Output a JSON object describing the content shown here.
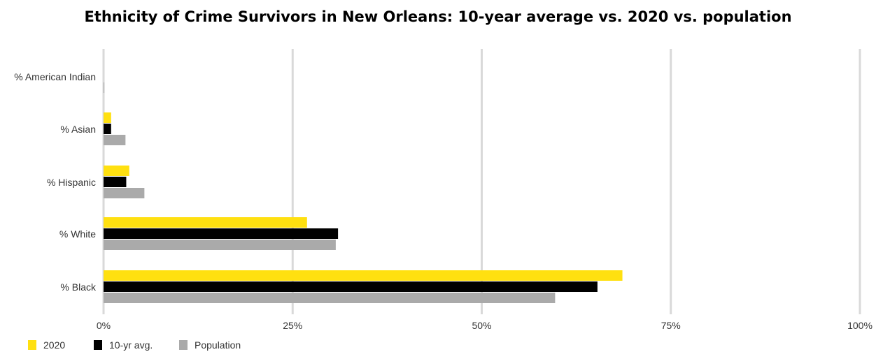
{
  "chart_data": {
    "type": "bar",
    "orientation": "horizontal",
    "title": "Ethnicity of Crime Survivors in New Orleans: 10-year average vs. 2020 vs. population",
    "categories": [
      "% American Indian",
      "% Asian",
      "% Hispanic",
      "% White",
      "% Black"
    ],
    "series": [
      {
        "name": "2020",
        "color": "#FFE010",
        "values": [
          0.0,
          1.0,
          3.4,
          26.9,
          68.6
        ]
      },
      {
        "name": "10-yr avg.",
        "color": "#000000",
        "values": [
          0.0,
          1.0,
          3.0,
          31.0,
          65.3
        ]
      },
      {
        "name": "Population",
        "color": "#AAAAAA",
        "values": [
          0.1,
          2.9,
          5.4,
          30.7,
          59.7
        ]
      }
    ],
    "xlim": [
      0,
      100
    ],
    "xticks": [
      "0%",
      "25%",
      "50%",
      "75%",
      "100%"
    ],
    "grid": true,
    "legend_position": "bottom-left"
  }
}
